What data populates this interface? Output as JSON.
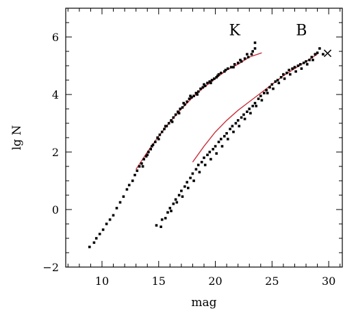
{
  "chart_data": {
    "type": "scatter",
    "title": "",
    "xlabel": "mag",
    "ylabel": "lg N",
    "xlim": [
      6.8,
      31.2
    ],
    "ylim": [
      -2,
      7
    ],
    "xticks": [
      10,
      15,
      20,
      25,
      30
    ],
    "yticks": [
      -2,
      0,
      2,
      4,
      6
    ],
    "xtick_labels": [
      "10",
      "15",
      "20",
      "25",
      "30"
    ],
    "ytick_labels": [
      "−2",
      "0",
      "2",
      "4",
      "6"
    ],
    "grid": false,
    "legend": "none",
    "colors": {
      "points": "#000000",
      "fit": "#c8303a",
      "axes": "#000000"
    },
    "annotations": [
      {
        "text": "K",
        "x": 21.7,
        "y": 6.25
      },
      {
        "text": "B",
        "x": 27.6,
        "y": 6.25
      }
    ],
    "series": [
      {
        "name": "K",
        "points": [
          [
            8.9,
            -1.3
          ],
          [
            9.3,
            -1.15
          ],
          [
            9.5,
            -1.0
          ],
          [
            9.8,
            -0.85
          ],
          [
            10.1,
            -0.7
          ],
          [
            10.4,
            -0.5
          ],
          [
            10.7,
            -0.35
          ],
          [
            11.0,
            -0.2
          ],
          [
            11.3,
            0.05
          ],
          [
            11.6,
            0.25
          ],
          [
            11.9,
            0.45
          ],
          [
            12.2,
            0.7
          ],
          [
            12.4,
            0.85
          ],
          [
            12.7,
            1.0
          ],
          [
            12.9,
            1.2
          ],
          [
            13.1,
            1.35
          ],
          [
            13.3,
            1.5
          ],
          [
            13.5,
            1.6
          ],
          [
            13.7,
            1.75
          ],
          [
            13.9,
            1.85
          ],
          [
            14.1,
            2.0
          ],
          [
            14.3,
            2.1
          ],
          [
            14.5,
            2.25
          ],
          [
            14.7,
            2.35
          ],
          [
            14.9,
            2.5
          ],
          [
            15.1,
            2.6
          ],
          [
            15.3,
            2.7
          ],
          [
            15.5,
            2.8
          ],
          [
            15.7,
            2.9
          ],
          [
            15.9,
            3.0
          ],
          [
            16.1,
            3.1
          ],
          [
            16.3,
            3.2
          ],
          [
            16.5,
            3.3
          ],
          [
            16.7,
            3.4
          ],
          [
            16.9,
            3.5
          ],
          [
            17.1,
            3.55
          ],
          [
            17.3,
            3.65
          ],
          [
            17.5,
            3.75
          ],
          [
            17.7,
            3.85
          ],
          [
            17.9,
            3.9
          ],
          [
            18.1,
            3.95
          ],
          [
            18.3,
            4.05
          ],
          [
            18.5,
            4.1
          ],
          [
            18.7,
            4.2
          ],
          [
            18.9,
            4.25
          ],
          [
            19.1,
            4.3
          ],
          [
            19.3,
            4.4
          ],
          [
            19.5,
            4.45
          ],
          [
            19.7,
            4.5
          ],
          [
            19.9,
            4.55
          ],
          [
            20.1,
            4.6
          ],
          [
            20.3,
            4.7
          ],
          [
            20.5,
            4.75
          ],
          [
            20.8,
            4.8
          ],
          [
            21.1,
            4.9
          ],
          [
            21.4,
            4.95
          ],
          [
            21.7,
            5.05
          ],
          [
            22.0,
            5.1
          ],
          [
            22.3,
            5.15
          ],
          [
            22.6,
            5.25
          ],
          [
            22.9,
            5.3
          ],
          [
            23.2,
            5.4
          ],
          [
            23.5,
            5.6
          ],
          [
            23.5,
            5.8
          ],
          [
            13.6,
            1.5
          ],
          [
            14.0,
            1.9
          ],
          [
            14.4,
            2.2
          ],
          [
            15.0,
            2.45
          ],
          [
            15.6,
            2.9
          ],
          [
            16.2,
            3.05
          ],
          [
            16.8,
            3.35
          ],
          [
            17.2,
            3.7
          ],
          [
            17.8,
            3.95
          ],
          [
            18.4,
            4.0
          ],
          [
            19.0,
            4.35
          ],
          [
            19.6,
            4.4
          ],
          [
            20.2,
            4.65
          ],
          [
            20.9,
            4.85
          ],
          [
            21.6,
            4.95
          ],
          [
            22.2,
            5.2
          ],
          [
            22.8,
            5.4
          ],
          [
            23.3,
            5.5
          ]
        ]
      },
      {
        "name": "B",
        "points": [
          [
            14.8,
            -0.55
          ],
          [
            15.2,
            -0.6
          ],
          [
            15.3,
            -0.35
          ],
          [
            15.6,
            -0.3
          ],
          [
            15.8,
            -0.1
          ],
          [
            16.0,
            0.05
          ],
          [
            16.3,
            0.2
          ],
          [
            16.5,
            0.35
          ],
          [
            16.8,
            0.5
          ],
          [
            17.0,
            0.65
          ],
          [
            17.3,
            0.8
          ],
          [
            17.5,
            0.95
          ],
          [
            17.8,
            1.1
          ],
          [
            18.0,
            1.25
          ],
          [
            18.3,
            1.4
          ],
          [
            18.5,
            1.55
          ],
          [
            18.8,
            1.65
          ],
          [
            19.0,
            1.8
          ],
          [
            19.3,
            1.9
          ],
          [
            19.5,
            2.0
          ],
          [
            19.8,
            2.1
          ],
          [
            20.0,
            2.2
          ],
          [
            20.3,
            2.35
          ],
          [
            20.5,
            2.45
          ],
          [
            20.8,
            2.55
          ],
          [
            21.0,
            2.65
          ],
          [
            21.3,
            2.8
          ],
          [
            21.5,
            2.9
          ],
          [
            21.8,
            3.0
          ],
          [
            22.0,
            3.1
          ],
          [
            22.3,
            3.2
          ],
          [
            22.5,
            3.3
          ],
          [
            22.8,
            3.4
          ],
          [
            23.0,
            3.5
          ],
          [
            23.3,
            3.6
          ],
          [
            23.5,
            3.7
          ],
          [
            23.8,
            3.85
          ],
          [
            24.0,
            3.95
          ],
          [
            24.3,
            4.05
          ],
          [
            24.5,
            4.15
          ],
          [
            24.8,
            4.25
          ],
          [
            25.0,
            4.35
          ],
          [
            25.3,
            4.45
          ],
          [
            25.5,
            4.5
          ],
          [
            25.8,
            4.6
          ],
          [
            26.0,
            4.7
          ],
          [
            26.3,
            4.75
          ],
          [
            26.5,
            4.85
          ],
          [
            26.8,
            4.9
          ],
          [
            27.0,
            4.95
          ],
          [
            27.3,
            5.0
          ],
          [
            27.5,
            5.05
          ],
          [
            27.8,
            5.1
          ],
          [
            28.0,
            5.15
          ],
          [
            28.3,
            5.2
          ],
          [
            28.5,
            5.3
          ],
          [
            28.8,
            5.4
          ],
          [
            29.0,
            5.45
          ],
          [
            29.2,
            5.6
          ],
          [
            29.5,
            5.4
          ],
          [
            16.1,
            -0.05
          ],
          [
            16.6,
            0.25
          ],
          [
            17.1,
            0.45
          ],
          [
            17.6,
            0.75
          ],
          [
            18.1,
            1.0
          ],
          [
            18.6,
            1.3
          ],
          [
            19.1,
            1.55
          ],
          [
            19.6,
            1.75
          ],
          [
            20.1,
            1.95
          ],
          [
            20.6,
            2.2
          ],
          [
            21.1,
            2.45
          ],
          [
            21.6,
            2.7
          ],
          [
            22.1,
            2.9
          ],
          [
            22.6,
            3.15
          ],
          [
            23.1,
            3.35
          ],
          [
            23.6,
            3.6
          ],
          [
            24.1,
            3.8
          ],
          [
            24.6,
            4.05
          ],
          [
            25.1,
            4.2
          ],
          [
            25.6,
            4.4
          ],
          [
            26.1,
            4.55
          ],
          [
            26.6,
            4.7
          ],
          [
            27.1,
            4.8
          ],
          [
            27.6,
            4.9
          ],
          [
            28.1,
            5.05
          ],
          [
            28.6,
            5.2
          ]
        ]
      }
    ],
    "fits": [
      {
        "name": "K",
        "points": [
          [
            13.0,
            1.4
          ],
          [
            14.0,
            2.0
          ],
          [
            15.0,
            2.55
          ],
          [
            16.0,
            3.05
          ],
          [
            17.0,
            3.5
          ],
          [
            18.0,
            3.9
          ],
          [
            19.0,
            4.25
          ],
          [
            20.0,
            4.55
          ],
          [
            21.0,
            4.85
          ],
          [
            22.0,
            5.05
          ],
          [
            23.0,
            5.3
          ],
          [
            24.1,
            5.45
          ]
        ]
      },
      {
        "name": "B",
        "points": [
          [
            18.0,
            1.65
          ],
          [
            19.0,
            2.2
          ],
          [
            20.0,
            2.7
          ],
          [
            21.0,
            3.1
          ],
          [
            22.0,
            3.45
          ],
          [
            23.0,
            3.75
          ],
          [
            24.0,
            4.05
          ],
          [
            25.0,
            4.35
          ],
          [
            26.0,
            4.65
          ],
          [
            27.0,
            4.9
          ],
          [
            28.0,
            5.15
          ],
          [
            29.0,
            5.4
          ]
        ]
      }
    ],
    "marker": {
      "text": "×",
      "x": 29.9,
      "y": 5.45
    }
  }
}
